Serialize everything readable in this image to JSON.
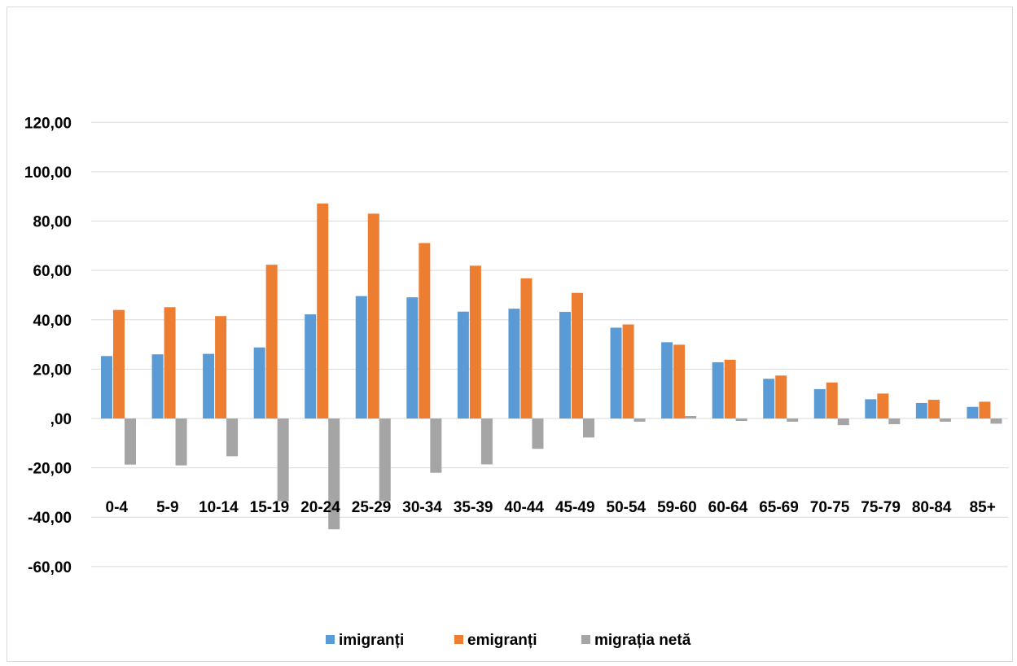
{
  "chart_data": {
    "type": "bar",
    "categories": [
      "0-4",
      "5-9",
      "10-14",
      "15-19",
      "20-24",
      "25-29",
      "30-34",
      "35-39",
      "40-44",
      "45-49",
      "50-54",
      "59-60",
      "60-64",
      "65-69",
      "70-75",
      "75-79",
      "80-84",
      "85+"
    ],
    "series": [
      {
        "name": "imigranți",
        "color": "#5b9bd5",
        "values": [
          25.3,
          26.0,
          26.2,
          28.8,
          42.2,
          49.6,
          49.1,
          43.3,
          44.5,
          43.2,
          36.8,
          30.9,
          22.8,
          16.1,
          11.9,
          7.8,
          6.3,
          4.7
        ]
      },
      {
        "name": "emigranți",
        "color": "#ed7d31",
        "values": [
          44.0,
          45.1,
          41.5,
          62.3,
          87.1,
          83.0,
          71.1,
          61.9,
          56.8,
          50.9,
          38.1,
          29.9,
          23.8,
          17.4,
          14.6,
          10.1,
          7.6,
          6.8
        ]
      },
      {
        "name": "migrația netă",
        "color": "#a5a5a5",
        "values": [
          -18.7,
          -19.0,
          -15.3,
          -33.5,
          -44.9,
          -33.4,
          -22.0,
          -18.6,
          -12.3,
          -7.7,
          -1.3,
          1.0,
          -1.0,
          -1.3,
          -2.7,
          -2.3,
          -1.3,
          -2.1
        ]
      }
    ],
    "y_ticks": [
      "-60,00",
      "-40,00",
      "-20,00",
      ",00",
      "20,00",
      "40,00",
      "60,00",
      "80,00",
      "100,00",
      "120,00"
    ],
    "y_tick_values": [
      -60,
      -40,
      -20,
      0,
      20,
      40,
      60,
      80,
      100,
      120
    ],
    "ylim": [
      -70,
      130
    ],
    "grid": true,
    "legend_position": "bottom"
  }
}
